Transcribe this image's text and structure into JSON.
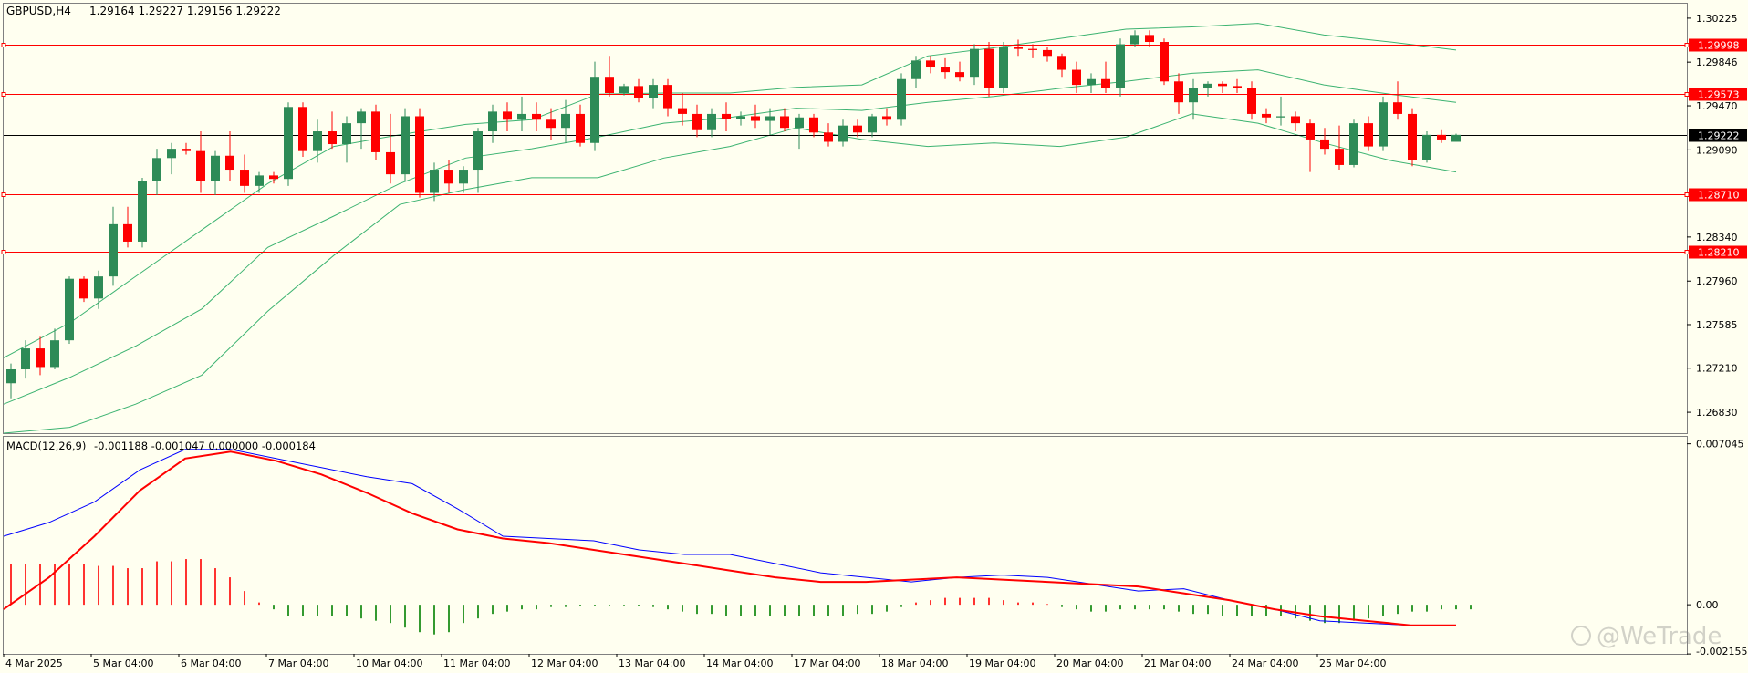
{
  "header": {
    "symbol": "GBPUSD,H4",
    "ohlc": "1.29164 1.29227 1.29156 1.29222"
  },
  "macd_label": {
    "name": "MACD(12,26,9)",
    "values": "-0.001188 -0.001047 0.000000 -0.000184"
  },
  "watermark": "@WeTrade",
  "colors": {
    "background": "#fffff0",
    "bull": "#2e8b57",
    "bear": "#ff0000",
    "band": "#3cb371",
    "level_line": "#ff0000",
    "current_price_line": "#000000",
    "macd_line": "#0000ff",
    "signal_line": "#ff0000",
    "hist_positive": "#ff0000",
    "hist_negative": "#008000"
  },
  "chart_data": [
    {
      "type": "candlestick",
      "title": "GBPUSD,H4",
      "ylim": [
        1.2665,
        1.3035
      ],
      "price_ticks": [
        "1.30225",
        "1.29846",
        "1.29470",
        "1.29090",
        "1.28340",
        "1.27960",
        "1.27585",
        "1.27210",
        "1.26830"
      ],
      "level_labels": [
        "1.29998",
        "1.29573",
        "1.28710",
        "1.28210"
      ],
      "levels": [
        1.29998,
        1.29573,
        1.2871,
        1.2821
      ],
      "current_price_label": "1.29222",
      "current_price": 1.29222,
      "x_labels": [
        "4 Mar 2025",
        "5 Mar 04:00",
        "6 Mar 04:00",
        "7 Mar 04:00",
        "10 Mar 04:00",
        "11 Mar 04:00",
        "12 Mar 04:00",
        "13 Mar 04:00",
        "14 Mar 04:00",
        "17 Mar 04:00",
        "18 Mar 04:00",
        "19 Mar 04:00",
        "20 Mar 04:00",
        "21 Mar 04:00",
        "24 Mar 04:00",
        "25 Mar 04:00"
      ],
      "candles": [
        {
          "o": 1.2708,
          "h": 1.2725,
          "l": 1.2695,
          "c": 1.272
        },
        {
          "o": 1.272,
          "h": 1.2745,
          "l": 1.2712,
          "c": 1.2738
        },
        {
          "o": 1.2738,
          "h": 1.2748,
          "l": 1.2715,
          "c": 1.2722
        },
        {
          "o": 1.2722,
          "h": 1.2755,
          "l": 1.272,
          "c": 1.2745
        },
        {
          "o": 1.2745,
          "h": 1.28,
          "l": 1.2742,
          "c": 1.2798
        },
        {
          "o": 1.2798,
          "h": 1.28,
          "l": 1.2778,
          "c": 1.2781
        },
        {
          "o": 1.2781,
          "h": 1.2805,
          "l": 1.2772,
          "c": 1.28
        },
        {
          "o": 1.28,
          "h": 1.286,
          "l": 1.2792,
          "c": 1.2845
        },
        {
          "o": 1.2845,
          "h": 1.286,
          "l": 1.2825,
          "c": 1.283
        },
        {
          "o": 1.283,
          "h": 1.2885,
          "l": 1.2825,
          "c": 1.2882
        },
        {
          "o": 1.2882,
          "h": 1.291,
          "l": 1.287,
          "c": 1.2902
        },
        {
          "o": 1.2902,
          "h": 1.2915,
          "l": 1.2888,
          "c": 1.291
        },
        {
          "o": 1.291,
          "h": 1.2915,
          "l": 1.2905,
          "c": 1.2908
        },
        {
          "o": 1.2908,
          "h": 1.2925,
          "l": 1.2872,
          "c": 1.2882
        },
        {
          "o": 1.2882,
          "h": 1.2908,
          "l": 1.287,
          "c": 1.2904
        },
        {
          "o": 1.2904,
          "h": 1.2925,
          "l": 1.2882,
          "c": 1.2892
        },
        {
          "o": 1.2892,
          "h": 1.2905,
          "l": 1.2872,
          "c": 1.2878
        },
        {
          "o": 1.2878,
          "h": 1.289,
          "l": 1.2872,
          "c": 1.2887
        },
        {
          "o": 1.2887,
          "h": 1.289,
          "l": 1.288,
          "c": 1.2884
        },
        {
          "o": 1.2884,
          "h": 1.295,
          "l": 1.2878,
          "c": 1.2946
        },
        {
          "o": 1.2946,
          "h": 1.295,
          "l": 1.2903,
          "c": 1.2908
        },
        {
          "o": 1.2908,
          "h": 1.2935,
          "l": 1.2898,
          "c": 1.2925
        },
        {
          "o": 1.2925,
          "h": 1.2942,
          "l": 1.291,
          "c": 1.2914
        },
        {
          "o": 1.2914,
          "h": 1.2938,
          "l": 1.2898,
          "c": 1.2932
        },
        {
          "o": 1.2932,
          "h": 1.2945,
          "l": 1.291,
          "c": 1.2942
        },
        {
          "o": 1.2942,
          "h": 1.2948,
          "l": 1.29,
          "c": 1.2907
        },
        {
          "o": 1.2907,
          "h": 1.294,
          "l": 1.288,
          "c": 1.2888
        },
        {
          "o": 1.2888,
          "h": 1.2945,
          "l": 1.2882,
          "c": 1.2938
        },
        {
          "o": 1.2938,
          "h": 1.2945,
          "l": 1.2868,
          "c": 1.2872
        },
        {
          "o": 1.2872,
          "h": 1.2898,
          "l": 1.2865,
          "c": 1.2892
        },
        {
          "o": 1.2892,
          "h": 1.29,
          "l": 1.2872,
          "c": 1.288
        },
        {
          "o": 1.288,
          "h": 1.2895,
          "l": 1.2872,
          "c": 1.2892
        },
        {
          "o": 1.2892,
          "h": 1.2928,
          "l": 1.2872,
          "c": 1.2925
        },
        {
          "o": 1.2925,
          "h": 1.2948,
          "l": 1.2915,
          "c": 1.2942
        },
        {
          "o": 1.2942,
          "h": 1.295,
          "l": 1.2925,
          "c": 1.2935
        },
        {
          "o": 1.2935,
          "h": 1.2955,
          "l": 1.2925,
          "c": 1.294
        },
        {
          "o": 1.294,
          "h": 1.295,
          "l": 1.2925,
          "c": 1.2935
        },
        {
          "o": 1.2935,
          "h": 1.2945,
          "l": 1.2918,
          "c": 1.2928
        },
        {
          "o": 1.2928,
          "h": 1.2952,
          "l": 1.2915,
          "c": 1.294
        },
        {
          "o": 1.294,
          "h": 1.2948,
          "l": 1.2912,
          "c": 1.2915
        },
        {
          "o": 1.2915,
          "h": 1.2985,
          "l": 1.2908,
          "c": 1.2972
        },
        {
          "o": 1.2972,
          "h": 1.299,
          "l": 1.2955,
          "c": 1.2958
        },
        {
          "o": 1.2958,
          "h": 1.2966,
          "l": 1.2956,
          "c": 1.2964
        },
        {
          "o": 1.2964,
          "h": 1.297,
          "l": 1.295,
          "c": 1.2954
        },
        {
          "o": 1.2954,
          "h": 1.297,
          "l": 1.2945,
          "c": 1.2965
        },
        {
          "o": 1.2965,
          "h": 1.297,
          "l": 1.2938,
          "c": 1.2945
        },
        {
          "o": 1.2945,
          "h": 1.2958,
          "l": 1.293,
          "c": 1.294
        },
        {
          "o": 1.294,
          "h": 1.2948,
          "l": 1.292,
          "c": 1.2926
        },
        {
          "o": 1.2926,
          "h": 1.2945,
          "l": 1.292,
          "c": 1.294
        },
        {
          "o": 1.294,
          "h": 1.295,
          "l": 1.2925,
          "c": 1.2936
        },
        {
          "o": 1.2936,
          "h": 1.2942,
          "l": 1.293,
          "c": 1.2938
        },
        {
          "o": 1.2938,
          "h": 1.2948,
          "l": 1.2928,
          "c": 1.2934
        },
        {
          "o": 1.2934,
          "h": 1.2945,
          "l": 1.2922,
          "c": 1.2938
        },
        {
          "o": 1.2938,
          "h": 1.2945,
          "l": 1.2925,
          "c": 1.2928
        },
        {
          "o": 1.2928,
          "h": 1.294,
          "l": 1.291,
          "c": 1.2937
        },
        {
          "o": 1.2937,
          "h": 1.294,
          "l": 1.292,
          "c": 1.2924
        },
        {
          "o": 1.2924,
          "h": 1.2932,
          "l": 1.2912,
          "c": 1.2916
        },
        {
          "o": 1.2916,
          "h": 1.2935,
          "l": 1.2912,
          "c": 1.293
        },
        {
          "o": 1.293,
          "h": 1.2935,
          "l": 1.292,
          "c": 1.2924
        },
        {
          "o": 1.2924,
          "h": 1.294,
          "l": 1.292,
          "c": 1.2938
        },
        {
          "o": 1.2938,
          "h": 1.2945,
          "l": 1.293,
          "c": 1.2935
        },
        {
          "o": 1.2935,
          "h": 1.2975,
          "l": 1.293,
          "c": 1.297
        },
        {
          "o": 1.297,
          "h": 1.299,
          "l": 1.2962,
          "c": 1.2986
        },
        {
          "o": 1.2986,
          "h": 1.299,
          "l": 1.2975,
          "c": 1.298
        },
        {
          "o": 1.298,
          "h": 1.2988,
          "l": 1.297,
          "c": 1.2976
        },
        {
          "o": 1.2976,
          "h": 1.2985,
          "l": 1.2968,
          "c": 1.2972
        },
        {
          "o": 1.2972,
          "h": 1.3,
          "l": 1.2965,
          "c": 1.2996
        },
        {
          "o": 1.2996,
          "h": 1.3002,
          "l": 1.2955,
          "c": 1.2962
        },
        {
          "o": 1.2962,
          "h": 1.3002,
          "l": 1.2958,
          "c": 1.2998
        },
        {
          "o": 1.2998,
          "h": 1.3004,
          "l": 1.299,
          "c": 1.2996
        },
        {
          "o": 1.2996,
          "h": 1.3,
          "l": 1.2988,
          "c": 1.2995
        },
        {
          "o": 1.2995,
          "h": 1.2998,
          "l": 1.2985,
          "c": 1.299
        },
        {
          "o": 1.299,
          "h": 1.2992,
          "l": 1.2972,
          "c": 1.2978
        },
        {
          "o": 1.2978,
          "h": 1.2985,
          "l": 1.2958,
          "c": 1.2965
        },
        {
          "o": 1.2965,
          "h": 1.2975,
          "l": 1.2958,
          "c": 1.297
        },
        {
          "o": 1.297,
          "h": 1.2985,
          "l": 1.2958,
          "c": 1.2962
        },
        {
          "o": 1.2962,
          "h": 1.3005,
          "l": 1.2955,
          "c": 1.3
        },
        {
          "o": 1.3,
          "h": 1.3012,
          "l": 1.2998,
          "c": 1.3008
        },
        {
          "o": 1.3008,
          "h": 1.3012,
          "l": 1.2998,
          "c": 1.3002
        },
        {
          "o": 1.3002,
          "h": 1.3005,
          "l": 1.2965,
          "c": 1.2968
        },
        {
          "o": 1.2968,
          "h": 1.2975,
          "l": 1.294,
          "c": 1.295
        },
        {
          "o": 1.295,
          "h": 1.297,
          "l": 1.2935,
          "c": 1.2962
        },
        {
          "o": 1.2962,
          "h": 1.2968,
          "l": 1.2955,
          "c": 1.2966
        },
        {
          "o": 1.2966,
          "h": 1.2968,
          "l": 1.2958,
          "c": 1.2964
        },
        {
          "o": 1.2964,
          "h": 1.297,
          "l": 1.2958,
          "c": 1.2962
        },
        {
          "o": 1.2962,
          "h": 1.2968,
          "l": 1.2935,
          "c": 1.294
        },
        {
          "o": 1.294,
          "h": 1.2945,
          "l": 1.2932,
          "c": 1.2937
        },
        {
          "o": 1.2937,
          "h": 1.2955,
          "l": 1.293,
          "c": 1.2938
        },
        {
          "o": 1.2938,
          "h": 1.2942,
          "l": 1.2925,
          "c": 1.2932
        },
        {
          "o": 1.2932,
          "h": 1.2935,
          "l": 1.289,
          "c": 1.2918
        },
        {
          "o": 1.2918,
          "h": 1.2928,
          "l": 1.2905,
          "c": 1.291
        },
        {
          "o": 1.291,
          "h": 1.293,
          "l": 1.2892,
          "c": 1.2896
        },
        {
          "o": 1.2896,
          "h": 1.2935,
          "l": 1.2894,
          "c": 1.2932
        },
        {
          "o": 1.2932,
          "h": 1.2938,
          "l": 1.2908,
          "c": 1.2912
        },
        {
          "o": 1.2912,
          "h": 1.2955,
          "l": 1.2908,
          "c": 1.295
        },
        {
          "o": 1.295,
          "h": 1.2968,
          "l": 1.2935,
          "c": 1.294
        },
        {
          "o": 1.294,
          "h": 1.2945,
          "l": 1.2895,
          "c": 1.29
        },
        {
          "o": 1.29,
          "h": 1.2925,
          "l": 1.2898,
          "c": 1.2922
        },
        {
          "o": 1.2922,
          "h": 1.2926,
          "l": 1.2915,
          "c": 1.2918
        },
        {
          "o": 1.2916,
          "h": 1.2923,
          "l": 1.2916,
          "c": 1.2922
        }
      ],
      "bands": {
        "upper": [
          1.273,
          1.276,
          1.28,
          1.284,
          1.288,
          1.2912,
          1.2922,
          1.2931,
          1.2935,
          1.2957,
          1.2958,
          1.2958,
          1.2963,
          1.2965,
          1.299,
          1.2997,
          1.3005,
          1.3013,
          1.3015,
          1.3018,
          1.3008,
          1.3002,
          1.2995
        ],
        "mid": [
          1.269,
          1.2713,
          1.274,
          1.2772,
          1.2825,
          1.2852,
          1.288,
          1.2902,
          1.291,
          1.292,
          1.2932,
          1.2937,
          1.2945,
          1.2943,
          1.295,
          1.2955,
          1.2962,
          1.2968,
          1.2975,
          1.2978,
          1.2965,
          1.2957,
          1.295
        ],
        "lower": [
          1.265,
          1.267,
          1.269,
          1.2715,
          1.277,
          1.2818,
          1.2862,
          1.2875,
          1.2885,
          1.2885,
          1.2902,
          1.2912,
          1.2928,
          1.2918,
          1.2912,
          1.2915,
          1.2912,
          1.292,
          1.294,
          1.2932,
          1.2915,
          1.29,
          1.289
        ]
      }
    },
    {
      "type": "macd",
      "title": "MACD(12,26,9)",
      "ylim": [
        -0.00215,
        0.00735
      ],
      "y_ticks": [
        "0.007045",
        "0.00",
        "-0.002155"
      ],
      "macd": [
        0.003,
        0.0036,
        0.0045,
        0.0059,
        0.0068,
        0.0068,
        0.0064,
        0.006,
        0.0056,
        0.0053,
        0.0042,
        0.003,
        0.0029,
        0.0028,
        0.0024,
        0.0022,
        0.0022,
        0.0018,
        0.0014,
        0.0012,
        0.001,
        0.0012,
        0.0013,
        0.0012,
        0.0009,
        0.0006,
        0.0007,
        0.0002,
        -0.0002,
        -0.0007,
        -0.0008,
        -0.0009,
        -0.0009
      ],
      "signal": [
        -0.0002,
        0.0012,
        0.003,
        0.005,
        0.0064,
        0.0067,
        0.0063,
        0.0057,
        0.0049,
        0.004,
        0.0033,
        0.0029,
        0.0027,
        0.0024,
        0.0021,
        0.0018,
        0.0015,
        0.0012,
        0.001,
        0.001,
        0.0011,
        0.0012,
        0.0011,
        0.001,
        0.0009,
        0.0008,
        0.0005,
        0.0002,
        -0.0002,
        -0.0005,
        -0.0007,
        -0.0009,
        -0.0009
      ],
      "histogram": [
        0.0018,
        0.0018,
        0.0018,
        0.0018,
        0.0018,
        0.0018,
        0.0017,
        0.0017,
        0.0016,
        0.0016,
        0.0019,
        0.0019,
        0.002,
        0.002,
        0.0016,
        0.0012,
        0.0006,
        0.0001,
        -0.0002,
        -0.0005,
        -0.0005,
        -0.0005,
        -0.0005,
        -0.0005,
        -0.0006,
        -0.0007,
        -0.0008,
        -0.001,
        -0.0012,
        -0.0013,
        -0.0012,
        -0.0008,
        -0.0006,
        -0.0004,
        -0.0003,
        -0.0002,
        -0.0002,
        -0.0001,
        -0.0001,
        -5e-05,
        -5e-05,
        -3e-05,
        -3e-05,
        -5e-05,
        -0.0001,
        -0.0002,
        -0.0003,
        -0.0004,
        -0.0004,
        -0.0005,
        -0.0005,
        -0.0005,
        -0.0005,
        -0.0005,
        -0.0005,
        -0.0005,
        -0.0005,
        -0.0005,
        -0.0004,
        -0.0004,
        -0.0003,
        -0.0001,
        0.0001,
        0.0002,
        0.0003,
        0.0003,
        0.0003,
        0.0003,
        0.0002,
        0.0001,
        0.0001,
        3e-05,
        -0.0001,
        -0.0002,
        -0.0003,
        -0.0003,
        -0.0002,
        -0.0002,
        -0.0002,
        -0.0002,
        -0.0003,
        -0.0004,
        -0.0004,
        -0.0005,
        -0.0005,
        -0.0005,
        -0.0005,
        -0.0005,
        -0.0006,
        -0.0007,
        -0.0008,
        -0.0008,
        -0.0007,
        -0.0006,
        -0.0005,
        -0.0004,
        -0.0003,
        -0.0003,
        -0.0002,
        -0.0002,
        -0.0002
      ]
    }
  ]
}
